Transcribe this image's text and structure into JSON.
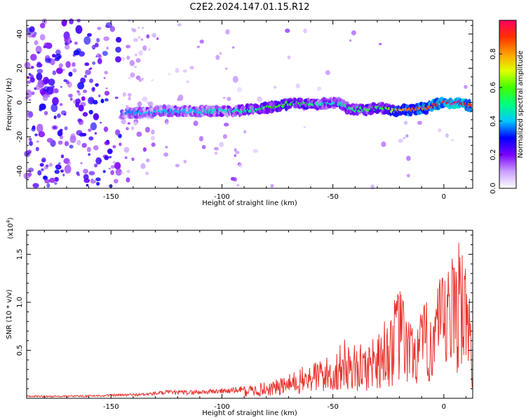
{
  "title": "C2E2.2024.147.01.15.R12",
  "chart_data": [
    {
      "type": "heatmap",
      "title": "C2E2.2024.147.01.15.R12",
      "xlabel": "Height of straight line (km)",
      "ylabel": "Frequency (Hz)",
      "xlim": [
        -188,
        13
      ],
      "ylim": [
        -50,
        48
      ],
      "xticks": [
        -150,
        -100,
        -50,
        0
      ],
      "yticks": [
        -40,
        -20,
        0,
        20,
        40
      ],
      "colorbar": {
        "label": "Normalized spectral amplitude",
        "range": [
          0,
          1
        ],
        "ticks": [
          "0.0",
          "0.2",
          "0.4",
          "0.6",
          "0.8"
        ],
        "colors": [
          "#ffffff",
          "#c9a0ff",
          "#7b00ff",
          "#0000ff",
          "#00c8ff",
          "#00ff80",
          "#40ff00",
          "#e0ff00",
          "#ffa000",
          "#ff3000",
          "#ff0060"
        ]
      },
      "ridge": {
        "x": [
          -145,
          -135,
          -125,
          -115,
          -105,
          -95,
          -85,
          -75,
          -68,
          -62,
          -55,
          -48,
          -42,
          -35,
          -28,
          -22,
          -15,
          -8,
          0,
          6,
          12
        ],
        "frequency": [
          -6,
          -6,
          -5,
          -5,
          -5,
          -5,
          -4,
          -2,
          0,
          -1,
          -1,
          0,
          -4,
          -4,
          -3,
          -5,
          -4,
          -3,
          0,
          0,
          -2
        ],
        "amplitude": [
          0.35,
          0.4,
          0.4,
          0.4,
          0.45,
          0.45,
          0.5,
          0.6,
          0.55,
          0.55,
          0.45,
          0.45,
          0.5,
          0.55,
          0.55,
          0.7,
          0.85,
          0.85,
          0.95,
          1.0,
          0.9
        ]
      }
    },
    {
      "type": "line",
      "xlabel": "Height of straight line (km)",
      "ylabel": "SNR (10 * v/v)",
      "yscale_label": "(x10^4)",
      "y_multiplier_text": "(x10",
      "y_multiplier_exp": "4",
      "xlim": [
        -188,
        13
      ],
      "ylim": [
        0,
        1.75
      ],
      "xticks": [
        -150,
        -100,
        -50,
        0
      ],
      "yticks": [
        "0.5",
        "1.0",
        "1.5"
      ],
      "color": "#e8322c",
      "series": [
        {
          "x": [
            -188,
            -170,
            -150,
            -135,
            -125,
            -115,
            -105,
            -95,
            -90,
            -85,
            -80,
            -75,
            -70,
            -65,
            -60,
            -55,
            -50,
            -45,
            -40,
            -35,
            -30,
            -25,
            -20,
            -15,
            -10,
            -5,
            0,
            5,
            8,
            10,
            13
          ],
          "y": [
            0.02,
            0.02,
            0.03,
            0.04,
            0.06,
            0.06,
            0.07,
            0.08,
            0.1,
            0.12,
            0.14,
            0.16,
            0.2,
            0.25,
            0.3,
            0.35,
            0.35,
            0.5,
            0.45,
            0.45,
            0.6,
            0.7,
            0.95,
            0.65,
            0.75,
            0.9,
            1.05,
            1.25,
            1.72,
            1.1,
            0.6
          ]
        }
      ]
    }
  ]
}
